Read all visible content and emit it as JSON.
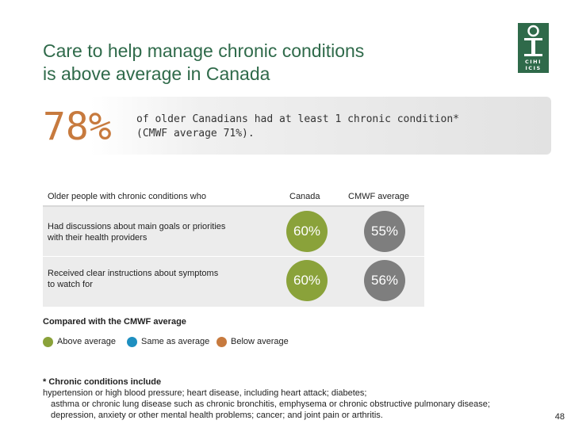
{
  "title": {
    "line1": "Care to help manage chronic conditions",
    "line2": "is above average in Canada"
  },
  "logo": {
    "text_line1": "CIHI",
    "text_line2": "ICIS"
  },
  "banner": {
    "stat": "78%",
    "line1": "of older Canadians had at least 1 chronic condition*",
    "line2": "(CMWF average 71%)."
  },
  "table": {
    "headers": {
      "question": "Older people with chronic conditions who",
      "canada": "Canada",
      "cmwf": "CMWF average"
    },
    "rows": [
      {
        "question_line1": "Had discussions about main goals or priorities",
        "question_line2": "with their health providers",
        "canada": "60%",
        "cmwf": "55%",
        "canada_status": "above"
      },
      {
        "question_line1": "Received clear instructions about symptoms",
        "question_line2": "to watch for",
        "canada": "60%",
        "cmwf": "56%",
        "canada_status": "above"
      }
    ]
  },
  "legend": {
    "title": "Compared with the CMWF average",
    "items": [
      {
        "label": "Above average",
        "color": "#8aa23a"
      },
      {
        "label": "Same as average",
        "color": "#1e8fc0"
      },
      {
        "label": "Below average",
        "color": "#c77a3e"
      }
    ]
  },
  "footnote": {
    "prefix": "* Chronic conditions include",
    "line1_rest": " hypertension or high blood pressure; heart disease, including heart attack; diabetes;",
    "line2": "asthma or chronic lung disease such as chronic bronchitis, emphysema or chronic obstructive pulmonary disease;",
    "line3": "depression, anxiety or other mental health problems; cancer; and joint pain or arthritis."
  },
  "page_number": "48",
  "colors": {
    "title_green": "#2f6a4a",
    "stat_orange": "#c77a3e",
    "canada_circle": "#8aa23a",
    "cmwf_circle": "#7e7e7e"
  }
}
